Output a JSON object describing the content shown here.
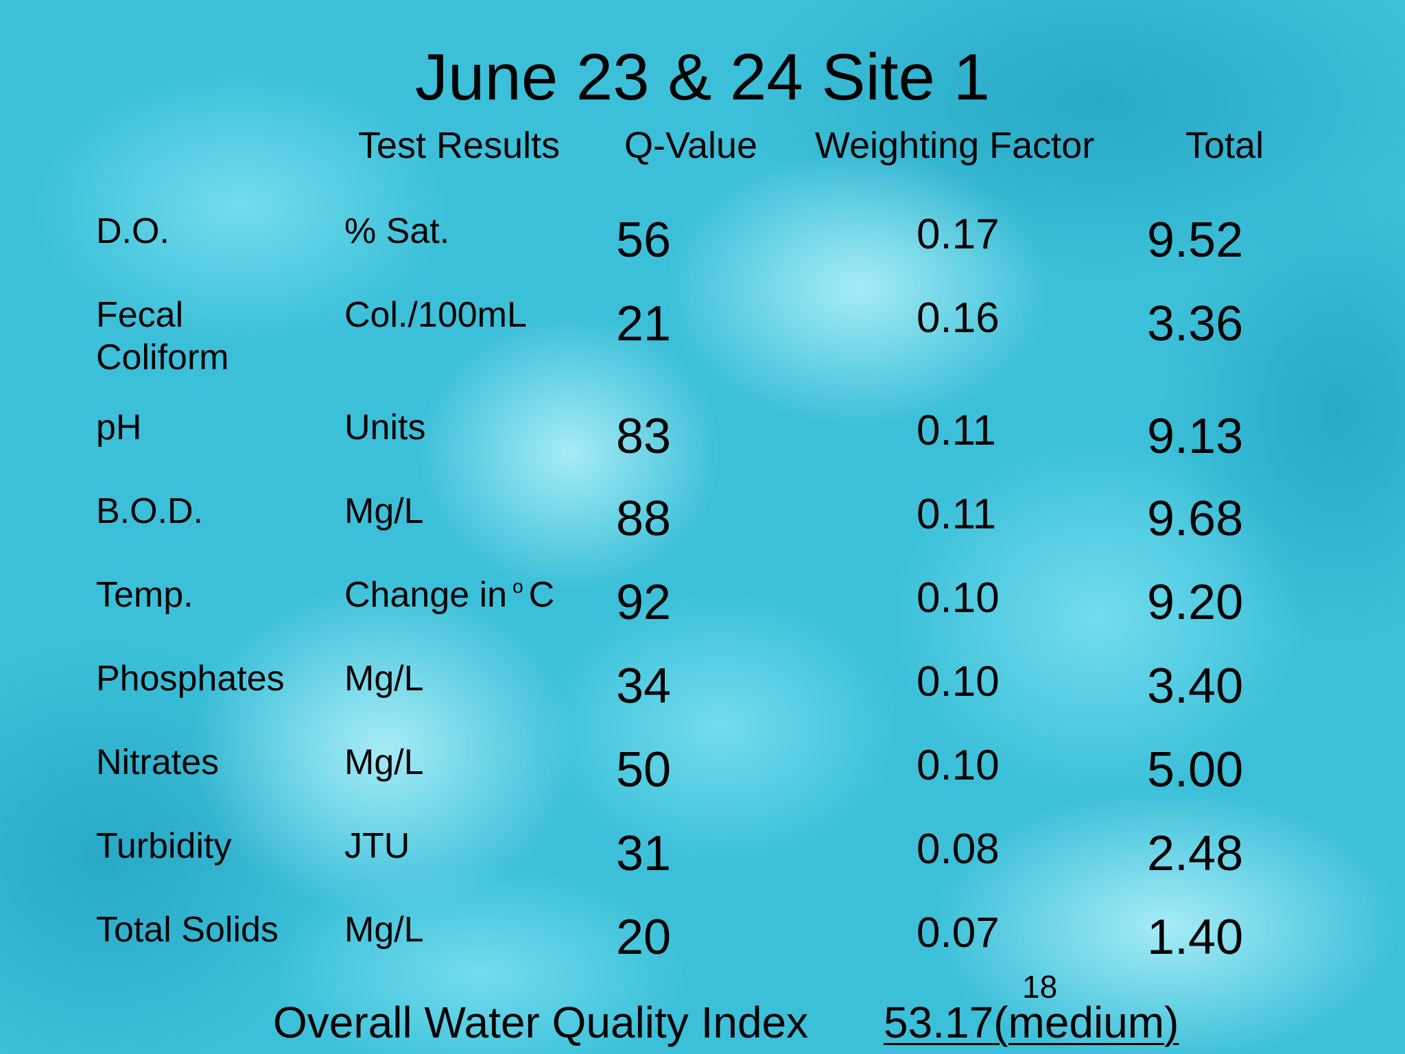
{
  "slide": {
    "title": "June 23 & 24 Site 1",
    "background_color": "#3fc3db",
    "columns": {
      "test_results": "Test Results",
      "q_value": "Q-Value",
      "weighting_factor": "Weighting Factor",
      "total": "Total"
    },
    "rows": [
      {
        "name": "D.O.",
        "unit": "% Sat.",
        "q": "56",
        "weight": "0.17",
        "total": "9.52"
      },
      {
        "name": "Fecal\nColiform",
        "unit": "Col./100mL",
        "q": "21",
        "weight": "0.16",
        "total": "3.36"
      },
      {
        "name": "pH",
        "unit": "Units",
        "q": "83",
        "weight": "0.11",
        "total": "9.13"
      },
      {
        "name": "B.O.D.",
        "unit": "Mg/L",
        "q": "88",
        "weight": "0.11",
        "total": "9.68"
      },
      {
        "name": "Temp.",
        "unit_prefix": "Change in",
        "unit_degree": "o",
        "unit_suffix": "C",
        "q": "92",
        "weight": "0.10",
        "total": "9.20"
      },
      {
        "name": "Phosphates",
        "unit": "Mg/L",
        "q": "34",
        "weight": "0.10",
        "total": "3.40"
      },
      {
        "name": "Nitrates",
        "unit": "Mg/L",
        "q": "50",
        "weight": "0.10",
        "total": "5.00"
      },
      {
        "name": "Turbidity",
        "unit": "JTU",
        "q": "31",
        "weight": "0.08",
        "total": "2.48"
      },
      {
        "name": "Total Solids",
        "unit": "Mg/L",
        "q": "20",
        "weight": "0.07",
        "total": "1.40"
      }
    ],
    "page_number": "18",
    "footer": {
      "label": "Overall Water Quality Index",
      "value": "53.17(medium)"
    }
  }
}
